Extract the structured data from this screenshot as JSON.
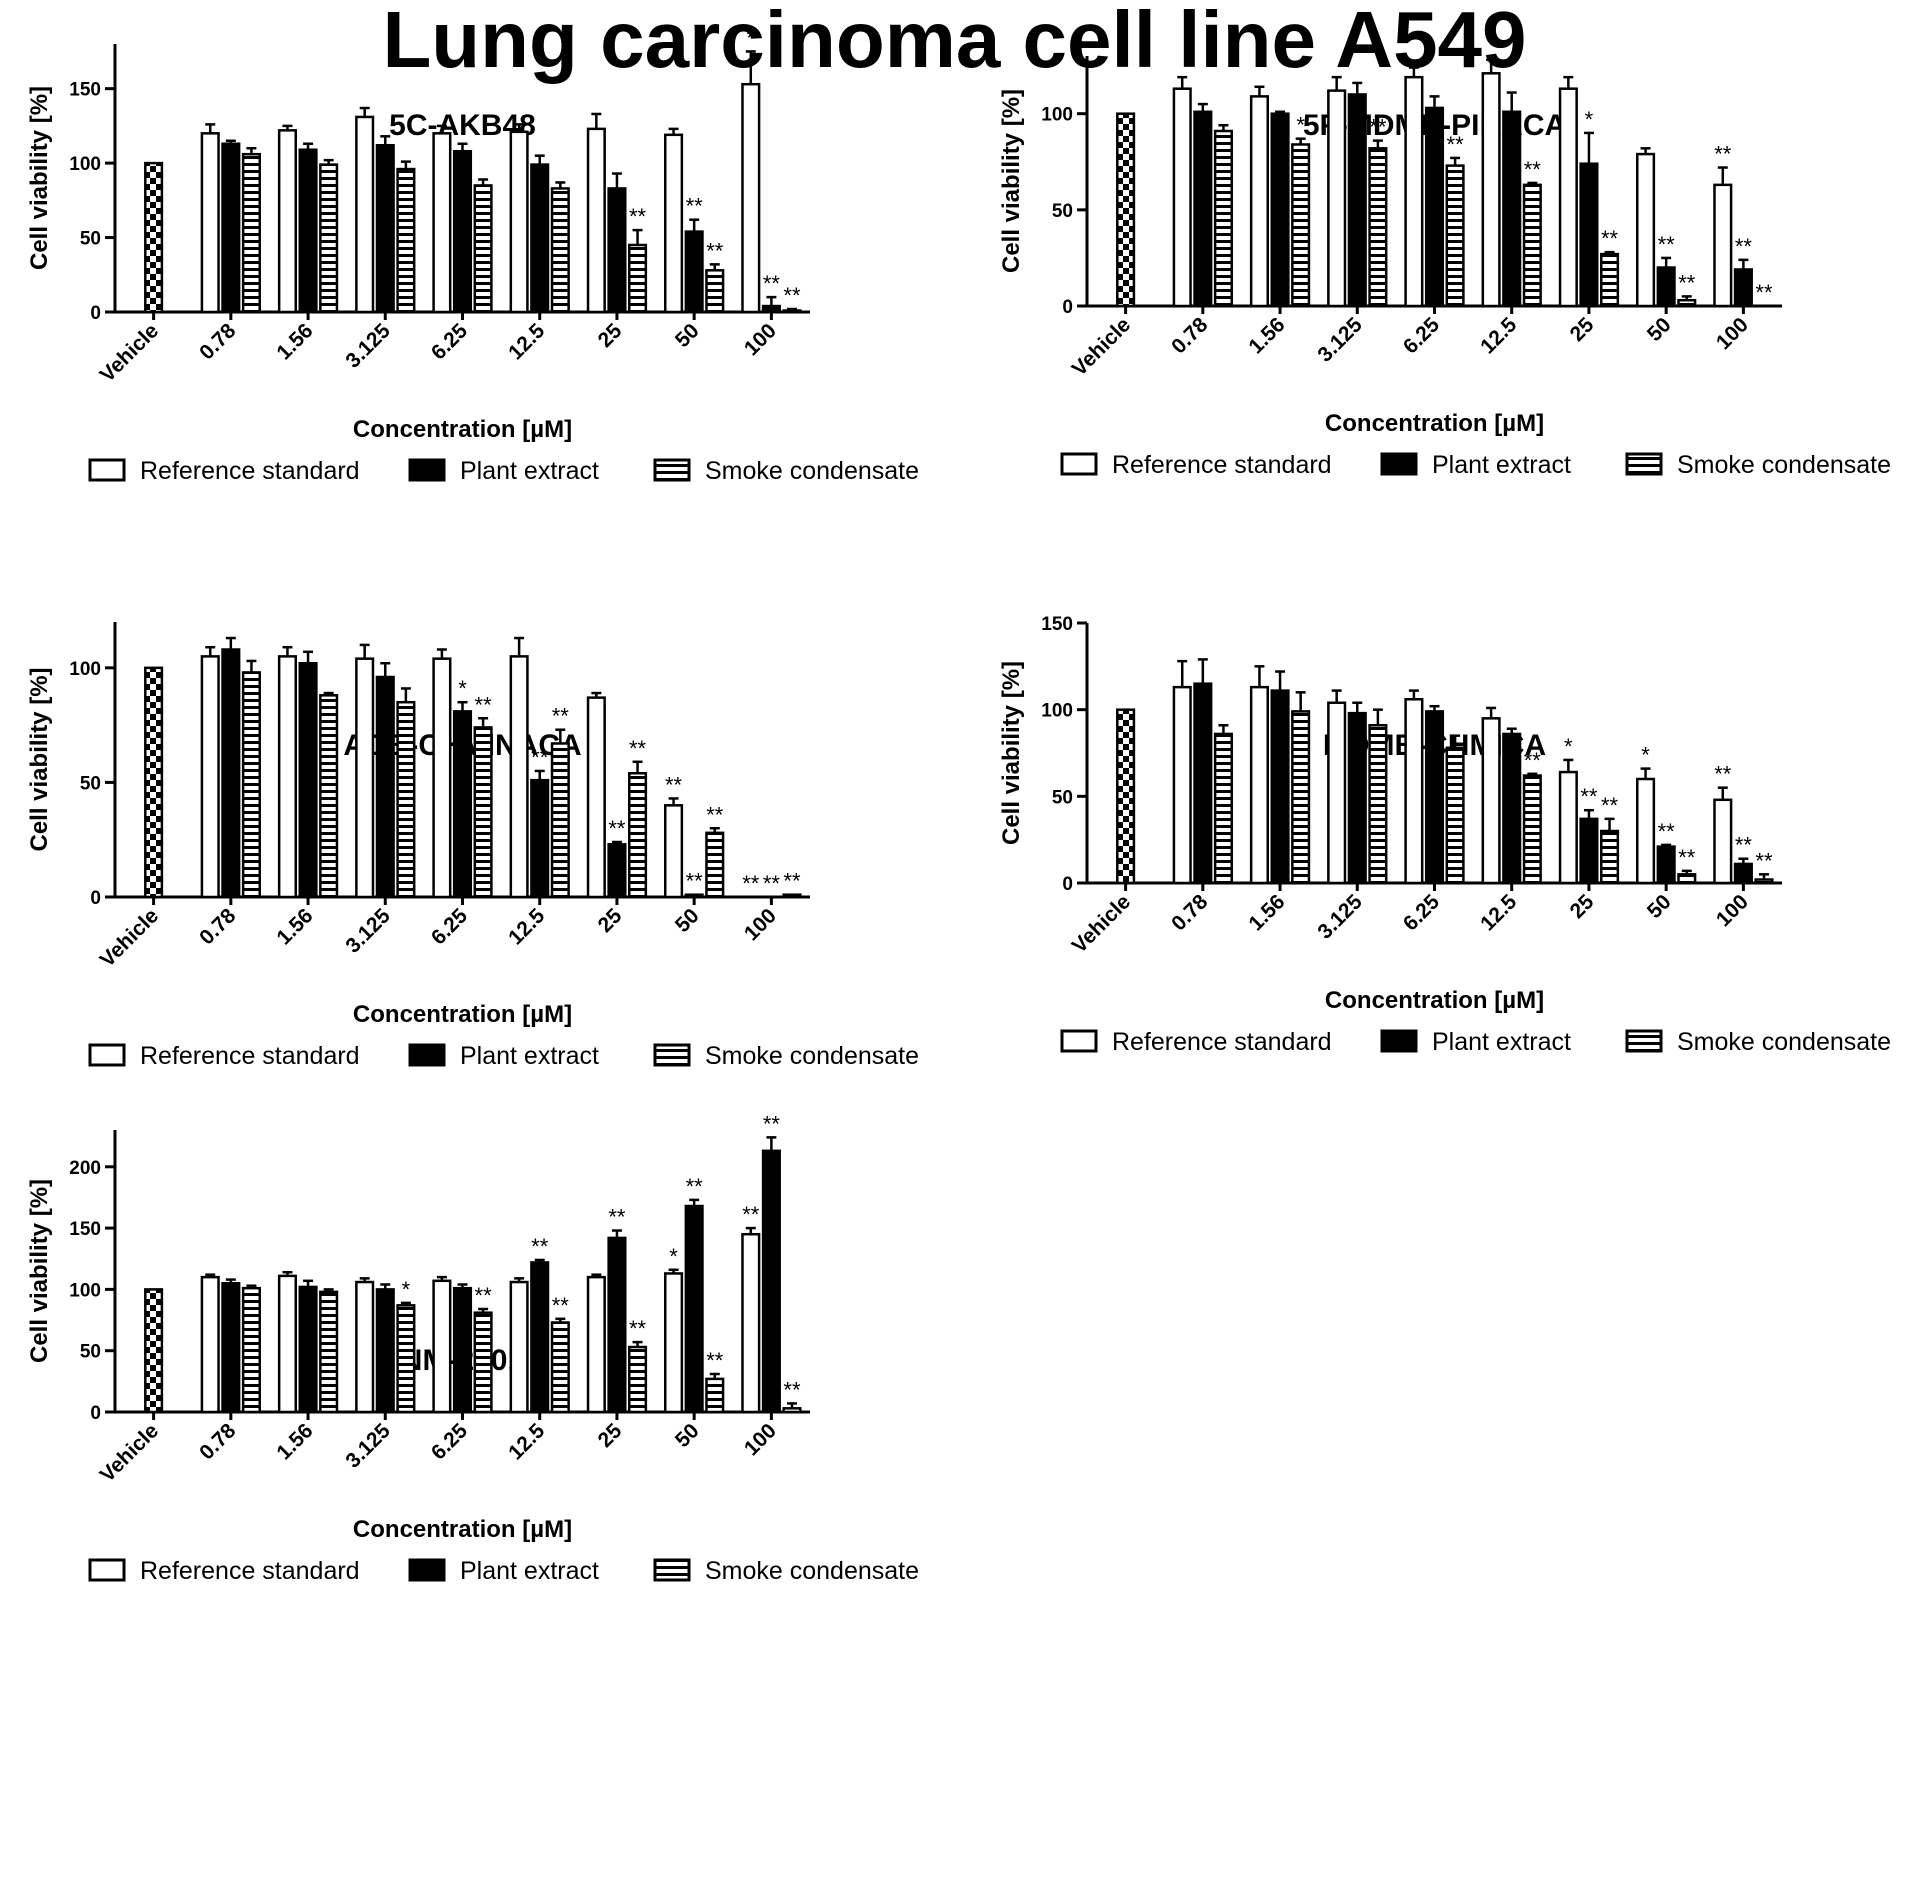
{
  "title": "Lung carcinoma cell line A549",
  "colors": {
    "ink": "#000000",
    "paper": "#ffffff"
  },
  "legend": [
    "Reference standard",
    "Plant extract",
    "Smoke condensate"
  ],
  "chart_data": [
    {
      "type": "bar",
      "title": "5C-AKB48",
      "xlabel": "Concentration [µM]",
      "ylabel": "Cell viability [%]",
      "ylim": [
        0,
        180
      ],
      "yticks": [
        0,
        50,
        100,
        150
      ],
      "vehicle_label": "Vehicle",
      "vehicle_value": 100,
      "categories": [
        "0.78",
        "1.56",
        "3.125",
        "6.25",
        "12.5",
        "25",
        "50",
        "100"
      ],
      "series": [
        {
          "name": "Reference standard",
          "values": [
            120,
            122,
            131,
            120,
            121,
            123,
            119,
            153
          ],
          "errors": [
            6,
            3,
            6,
            5,
            5,
            10,
            4,
            22
          ],
          "sig": [
            "",
            "",
            "",
            "",
            "",
            "",
            "",
            "*"
          ]
        },
        {
          "name": "Plant extract",
          "values": [
            113,
            109,
            112,
            108,
            99,
            83,
            54,
            4
          ],
          "errors": [
            2,
            4,
            6,
            5,
            6,
            10,
            8,
            6
          ],
          "sig": [
            "",
            "",
            "",
            "",
            "",
            "",
            "**",
            "**"
          ]
        },
        {
          "name": "Smoke condensate",
          "values": [
            106,
            99,
            96,
            85,
            83,
            45,
            28,
            1
          ],
          "errors": [
            4,
            3,
            5,
            4,
            4,
            10,
            4,
            1
          ],
          "sig": [
            "",
            "",
            "",
            "",
            "",
            "**",
            "**",
            "**"
          ]
        }
      ]
    },
    {
      "type": "bar",
      "title": "5F-MDMB-PINACA",
      "xlabel": "Concentration [µM]",
      "ylabel": "Cell viability [%]",
      "ylim": [
        0,
        130
      ],
      "yticks": [
        0,
        50,
        100
      ],
      "vehicle_label": "Vehicle",
      "vehicle_value": 100,
      "categories": [
        "0.78",
        "1.56",
        "3.125",
        "6.25",
        "12.5",
        "25",
        "50",
        "100"
      ],
      "series": [
        {
          "name": "Reference standard",
          "values": [
            113,
            109,
            112,
            119,
            121,
            113,
            79,
            63
          ],
          "errors": [
            6,
            5,
            7,
            5,
            7,
            6,
            3,
            9
          ],
          "sig": [
            "",
            "",
            "",
            "",
            "",
            "",
            "",
            "**"
          ]
        },
        {
          "name": "Plant extract",
          "values": [
            101,
            100,
            110,
            103,
            101,
            74,
            20,
            19
          ],
          "errors": [
            4,
            1,
            6,
            6,
            10,
            16,
            5,
            5
          ],
          "sig": [
            "",
            "",
            "",
            "",
            "",
            "*",
            "**",
            "**"
          ]
        },
        {
          "name": "Smoke condensate",
          "values": [
            91,
            84,
            82,
            73,
            63,
            27,
            3,
            0
          ],
          "errors": [
            3,
            3,
            4,
            4,
            1,
            1,
            2,
            0
          ],
          "sig": [
            "",
            "*",
            "**",
            "**",
            "**",
            "**",
            "**",
            "**"
          ]
        }
      ]
    },
    {
      "type": "bar",
      "title": "ADB-CHMINACA",
      "xlabel": "Concentration [µM]",
      "ylabel": "Cell viability [%]",
      "ylim": [
        0,
        120
      ],
      "yticks": [
        0,
        50,
        100
      ],
      "vehicle_label": "Vehicle",
      "vehicle_value": 100,
      "categories": [
        "0.78",
        "1.56",
        "3.125",
        "6.25",
        "12.5",
        "25",
        "50",
        "100"
      ],
      "series": [
        {
          "name": "Reference standard",
          "values": [
            105,
            105,
            104,
            104,
            105,
            87,
            40,
            0
          ],
          "errors": [
            4,
            4,
            6,
            4,
            8,
            2,
            3,
            0
          ],
          "sig": [
            "",
            "",
            "",
            "",
            "",
            "",
            "**",
            "**"
          ]
        },
        {
          "name": "Plant extract",
          "values": [
            108,
            102,
            96,
            81,
            51,
            23,
            1,
            0
          ],
          "errors": [
            5,
            5,
            6,
            4,
            4,
            1,
            0,
            0
          ],
          "sig": [
            "",
            "",
            "",
            "*",
            "**",
            "**",
            "**",
            "**"
          ]
        },
        {
          "name": "Smoke condensate",
          "values": [
            98,
            88,
            85,
            74,
            67,
            54,
            28,
            1
          ],
          "errors": [
            5,
            1,
            6,
            4,
            6,
            5,
            2,
            0
          ],
          "sig": [
            "",
            "",
            "",
            "**",
            "**",
            "**",
            "**",
            "**"
          ]
        }
      ]
    },
    {
      "type": "bar",
      "title": "MDMB-CHMICA",
      "xlabel": "Concentration [µM]",
      "ylabel": "Cell viability [%]",
      "ylim": [
        0,
        150
      ],
      "yticks": [
        0,
        50,
        100,
        150
      ],
      "vehicle_label": "Vehicle",
      "vehicle_value": 100,
      "categories": [
        "0.78",
        "1.56",
        "3.125",
        "6.25",
        "12.5",
        "25",
        "50",
        "100"
      ],
      "series": [
        {
          "name": "Reference standard",
          "values": [
            113,
            113,
            104,
            106,
            95,
            64,
            60,
            48
          ],
          "errors": [
            15,
            12,
            7,
            5,
            6,
            7,
            6,
            7
          ],
          "sig": [
            "",
            "",
            "",
            "",
            "",
            "*",
            "*",
            "**"
          ]
        },
        {
          "name": "Plant extract",
          "values": [
            115,
            111,
            98,
            99,
            86,
            37,
            21,
            11
          ],
          "errors": [
            14,
            11,
            6,
            3,
            3,
            5,
            1,
            3
          ],
          "sig": [
            "",
            "",
            "",
            "",
            "",
            "**",
            "**",
            "**"
          ]
        },
        {
          "name": "Smoke condensate",
          "values": [
            86,
            99,
            91,
            78,
            62,
            30,
            5,
            2
          ],
          "errors": [
            5,
            11,
            9,
            7,
            1,
            7,
            2,
            3
          ],
          "sig": [
            "",
            "",
            "",
            "",
            "**",
            "**",
            "**",
            "**"
          ]
        }
      ]
    },
    {
      "type": "bar",
      "title": "NM-2201",
      "xlabel": "Concentration [µM]",
      "ylabel": "Cell viability [%]",
      "ylim": [
        0,
        230
      ],
      "yticks": [
        0,
        50,
        100,
        150,
        200
      ],
      "vehicle_label": "Vehicle",
      "vehicle_value": 100,
      "categories": [
        "0.78",
        "1.56",
        "3.125",
        "6.25",
        "12.5",
        "25",
        "50",
        "100"
      ],
      "series": [
        {
          "name": "Reference standard",
          "values": [
            110,
            111,
            106,
            107,
            106,
            110,
            113,
            145
          ],
          "errors": [
            2,
            3,
            3,
            3,
            3,
            2,
            3,
            5
          ],
          "sig": [
            "",
            "",
            "",
            "",
            "",
            "",
            "*",
            "**"
          ]
        },
        {
          "name": "Plant extract",
          "values": [
            105,
            102,
            100,
            101,
            122,
            142,
            168,
            213
          ],
          "errors": [
            3,
            5,
            4,
            3,
            2,
            6,
            5,
            11
          ],
          "sig": [
            "",
            "",
            "",
            "",
            "**",
            "**",
            "**",
            "**"
          ]
        },
        {
          "name": "Smoke condensate",
          "values": [
            101,
            98,
            87,
            81,
            73,
            53,
            27,
            3
          ],
          "errors": [
            2,
            2,
            2,
            3,
            3,
            4,
            4,
            4
          ],
          "sig": [
            "",
            "",
            "*",
            "**",
            "**",
            "**",
            "**",
            "**"
          ]
        }
      ]
    }
  ]
}
